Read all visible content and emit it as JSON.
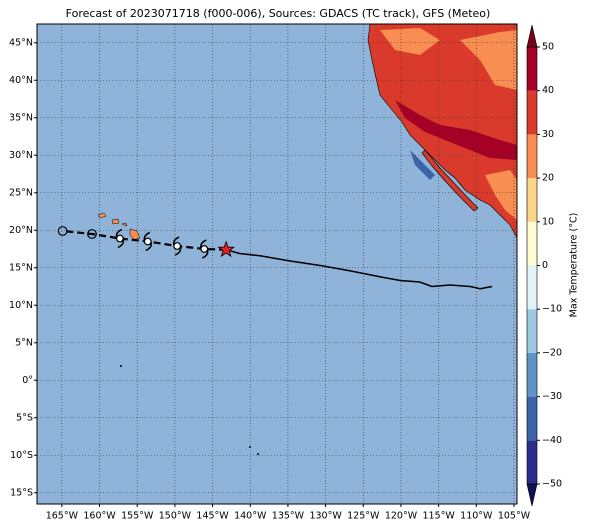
{
  "map": {
    "title": "Forecast of 2023071718 (f000-006), Sources: GDACS (TC track), GFS (Meteo)",
    "xlim": [
      -168.3,
      -104.6
    ],
    "ylim": [
      -16.5,
      47.5
    ],
    "xticks": [
      {
        "value": -165,
        "label": "165°W"
      },
      {
        "value": -160,
        "label": "160°W"
      },
      {
        "value": -155,
        "label": "155°W"
      },
      {
        "value": -150,
        "label": "150°W"
      },
      {
        "value": -145,
        "label": "145°W"
      },
      {
        "value": -140,
        "label": "140°W"
      },
      {
        "value": -135,
        "label": "135°W"
      },
      {
        "value": -130,
        "label": "130°W"
      },
      {
        "value": -125,
        "label": "125°W"
      },
      {
        "value": -120,
        "label": "120°W"
      },
      {
        "value": -115,
        "label": "115°W"
      },
      {
        "value": -110,
        "label": "110°W"
      },
      {
        "value": -105,
        "label": "105°W"
      }
    ],
    "yticks": [
      {
        "value": 45,
        "label": "45°N"
      },
      {
        "value": 40,
        "label": "40°N"
      },
      {
        "value": 35,
        "label": "35°N"
      },
      {
        "value": 30,
        "label": "30°N"
      },
      {
        "value": 25,
        "label": "25°N"
      },
      {
        "value": 20,
        "label": "20°N"
      },
      {
        "value": 15,
        "label": "15°N"
      },
      {
        "value": 10,
        "label": "10°N"
      },
      {
        "value": 5,
        "label": "5°N"
      },
      {
        "value": 0,
        "label": "0°"
      },
      {
        "value": -5,
        "label": "5°S"
      },
      {
        "value": -10,
        "label": "10°S"
      },
      {
        "value": -15,
        "label": "15°S"
      }
    ],
    "grid": true,
    "ocean_color": "#8fb3d9",
    "past_track": {
      "color": "#000000",
      "lon": [
        -143.2,
        -141.4,
        -138.7,
        -134.7,
        -130.7,
        -126.8,
        -122.8,
        -120.1,
        -117.5,
        -115.9,
        -113.5,
        -110.8,
        -109.5,
        -107.9
      ],
      "lat": [
        17.4,
        16.9,
        16.6,
        15.9,
        15.3,
        14.6,
        13.8,
        13.3,
        13.1,
        12.5,
        12.7,
        12.5,
        12.2,
        12.5
      ]
    },
    "current_position": {
      "lon": -143.2,
      "lat": 17.4,
      "color": "#e02020"
    },
    "forecast": {
      "lon": [
        -143.2,
        -146.1,
        -149.7,
        -153.6,
        -157.3,
        -161.0,
        -164.9
      ],
      "lat": [
        17.4,
        17.5,
        17.9,
        18.5,
        18.9,
        19.5,
        19.9
      ]
    },
    "colorbar": {
      "label": "Max Temperature (°C)",
      "lim": [
        -50,
        50
      ],
      "ticks": [
        {
          "value": -50,
          "label": "−50"
        },
        {
          "value": -40,
          "label": "−40"
        },
        {
          "value": -30,
          "label": "−30"
        },
        {
          "value": -20,
          "label": "−20"
        },
        {
          "value": -10,
          "label": "−10"
        },
        0,
        10,
        20,
        30,
        40,
        50
      ],
      "colors": [
        "#2b2d8a",
        "#3d64a8",
        "#5f95c6",
        "#9cc7e0",
        "#e3f3f5",
        "#fefcd2",
        "#fdd588",
        "#f88e52",
        "#d93a2b",
        "#a50026"
      ],
      "extend_colors": [
        "#12125a",
        "#7a0020"
      ]
    }
  }
}
